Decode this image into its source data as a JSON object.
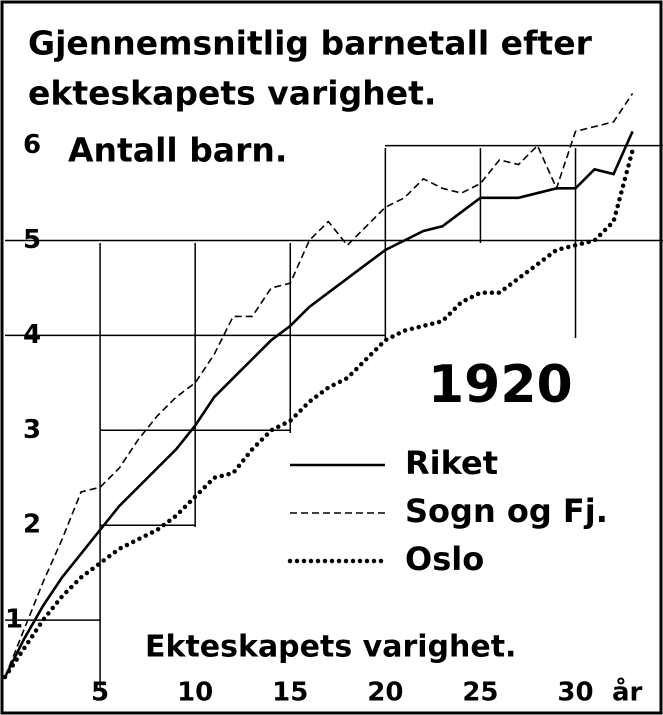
{
  "chart_data": {
    "type": "line",
    "title": [
      "Gjennemsnitlig barnetall efter",
      "ekteskapets varighet."
    ],
    "y_label": "Antall barn.",
    "x_label": "Ekteskapets varighet.",
    "x_unit": "år",
    "annotation": "1920",
    "x": [
      0,
      1,
      2,
      3,
      4,
      5,
      6,
      7,
      8,
      9,
      10,
      11,
      12,
      13,
      14,
      15,
      16,
      17,
      18,
      19,
      20,
      21,
      22,
      23,
      24,
      25,
      26,
      27,
      28,
      29,
      30,
      31,
      32,
      33
    ],
    "series": [
      {
        "name": "Riket",
        "color": "#000000",
        "style": "solid",
        "values": [
          0.4,
          0.8,
          1.15,
          1.45,
          1.7,
          1.95,
          2.2,
          2.4,
          2.6,
          2.8,
          3.05,
          3.35,
          3.55,
          3.75,
          3.95,
          4.1,
          4.3,
          4.45,
          4.6,
          4.75,
          4.9,
          5.0,
          5.1,
          5.15,
          5.3,
          5.45,
          5.45,
          5.45,
          5.5,
          5.55,
          5.55,
          5.75,
          5.7,
          6.15
        ]
      },
      {
        "name": "Sogn og Fj.",
        "color": "#000000",
        "style": "dashed",
        "values": [
          0.4,
          0.9,
          1.4,
          1.85,
          2.35,
          2.4,
          2.6,
          2.9,
          3.15,
          3.35,
          3.5,
          3.8,
          4.2,
          4.2,
          4.5,
          4.55,
          5.0,
          5.2,
          4.95,
          5.15,
          5.35,
          5.45,
          5.65,
          5.55,
          5.5,
          5.6,
          5.85,
          5.8,
          6.0,
          5.55,
          6.15,
          6.2,
          6.25,
          6.55
        ]
      },
      {
        "name": "Oslo",
        "color": "#000000",
        "style": "dotted",
        "values": [
          0.4,
          0.7,
          1.0,
          1.25,
          1.45,
          1.6,
          1.75,
          1.85,
          1.95,
          2.1,
          2.3,
          2.5,
          2.55,
          2.8,
          3.0,
          3.1,
          3.3,
          3.45,
          3.55,
          3.75,
          3.95,
          4.05,
          4.1,
          4.15,
          4.35,
          4.45,
          4.45,
          4.6,
          4.75,
          4.9,
          4.95,
          5.0,
          5.2,
          5.95
        ]
      }
    ],
    "xlim": [
      0,
      34.6
    ],
    "ylim": [
      0,
      7.45
    ],
    "xticks": [
      5,
      10,
      15,
      20,
      25,
      30
    ],
    "yticks": [
      1,
      2,
      3,
      4,
      5,
      6
    ],
    "grid": true
  }
}
